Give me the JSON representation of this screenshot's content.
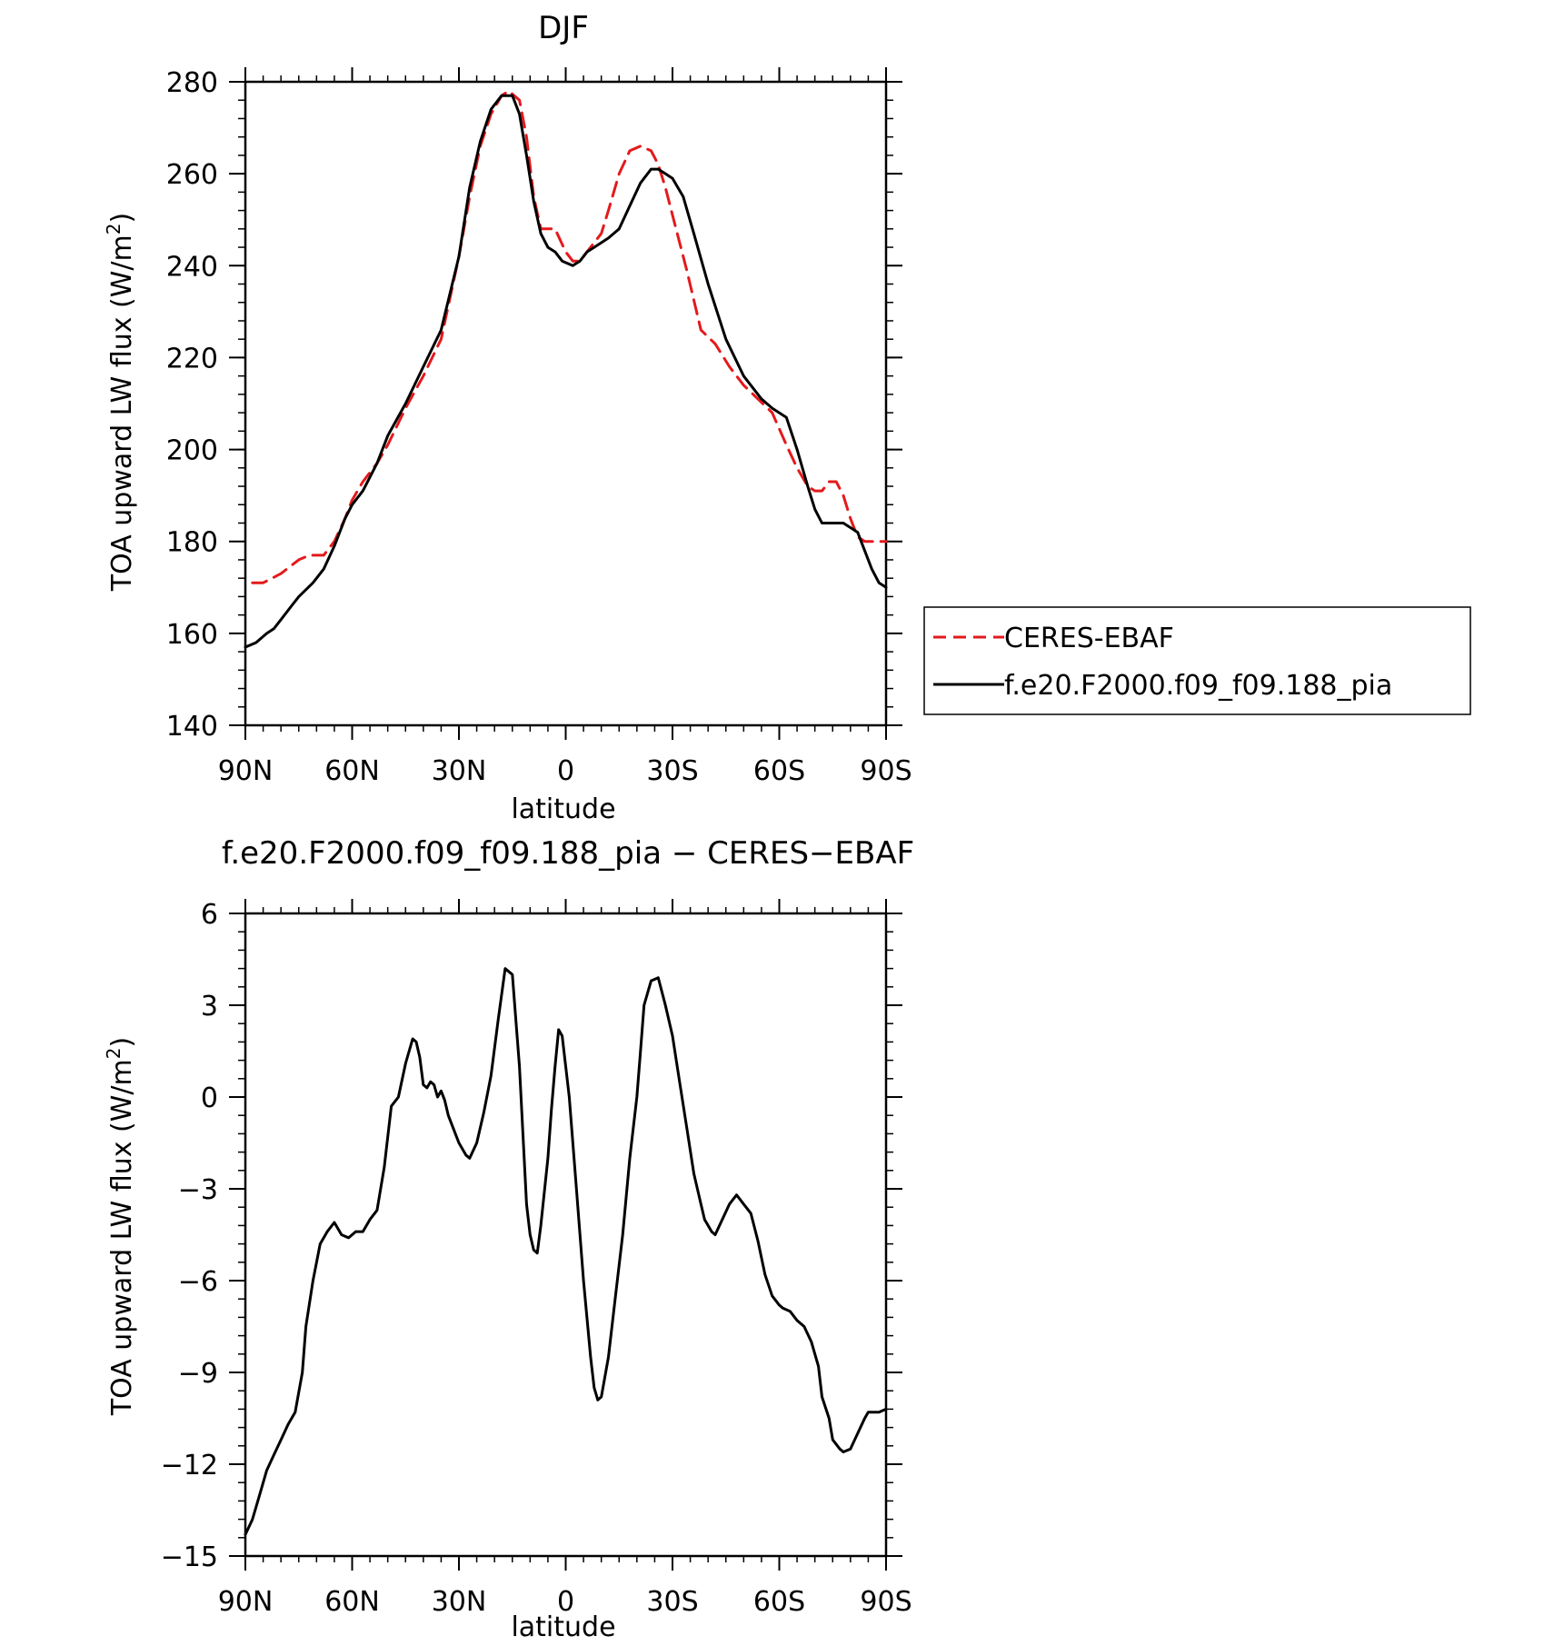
{
  "chart_data": [
    {
      "type": "line",
      "title": "DJF",
      "xlabel": "latitude",
      "ylabel": "TOA upward LW flux (W/m²)",
      "ylabel_parts": {
        "main": "TOA upward LW flux (W/m",
        "sup": "2",
        "end": ")"
      },
      "x_ticks": [
        90,
        60,
        30,
        0,
        -30,
        -60,
        -90
      ],
      "x_tick_labels": [
        "90N",
        "60N",
        "30N",
        "0",
        "30S",
        "60S",
        "90S"
      ],
      "xlim": [
        90,
        -90
      ],
      "y_ticks": [
        140,
        160,
        180,
        200,
        220,
        240,
        260,
        280
      ],
      "y_tick_labels": [
        "140",
        "160",
        "180",
        "200",
        "220",
        "240",
        "260",
        "280"
      ],
      "ylim": [
        140,
        280
      ],
      "legend_position": "right",
      "series": [
        {
          "name": "CERES-EBAF",
          "color": "#e31a1c",
          "dash": "dashed",
          "x": [
            88,
            85,
            80,
            75,
            72,
            68,
            65,
            62,
            60,
            57,
            53,
            50,
            45,
            40,
            35,
            30,
            27,
            24,
            21,
            18,
            16,
            13,
            11,
            9,
            7,
            5,
            3,
            0,
            -2,
            -4,
            -6,
            -8,
            -10,
            -12,
            -15,
            -18,
            -21,
            -24,
            -26,
            -28,
            -31,
            -34,
            -38,
            -42,
            -46,
            -50,
            -54,
            -58,
            -62,
            -65,
            -68,
            -70,
            -72,
            -74,
            -76,
            -78,
            -80,
            -82,
            -84,
            -86,
            -88,
            -90
          ],
          "y": [
            171,
            171,
            173,
            176,
            177,
            177,
            180,
            185,
            189,
            193,
            197,
            201,
            209,
            216,
            224,
            242,
            255,
            266,
            273,
            277,
            278,
            276,
            268,
            255,
            248,
            248,
            248,
            243,
            241,
            241,
            243,
            245,
            247,
            252,
            260,
            265,
            266,
            265,
            262,
            257,
            248,
            239,
            226,
            223,
            218,
            214,
            211,
            208,
            201,
            196,
            192,
            191,
            191,
            193,
            193,
            190,
            185,
            181,
            180,
            180,
            180,
            180
          ]
        },
        {
          "name": "f.e20.F2000.f09_f09.188_pia",
          "color": "#000000",
          "dash": "solid",
          "x": [
            90,
            87,
            84,
            82,
            80,
            77,
            75,
            71,
            68,
            65,
            62,
            60,
            57,
            53,
            50,
            45,
            40,
            35,
            30,
            27,
            24,
            21,
            18,
            15,
            13,
            11,
            9,
            7,
            5,
            3,
            1,
            -2,
            -4,
            -6,
            -8,
            -10,
            -12,
            -15,
            -18,
            -21,
            -24,
            -26,
            -28,
            -30,
            -33,
            -36,
            -40,
            -45,
            -50,
            -55,
            -58,
            -62,
            -65,
            -68,
            -70,
            -72,
            -75,
            -78,
            -80,
            -82,
            -84,
            -86,
            -88,
            -90
          ],
          "y": [
            157,
            158,
            160,
            161,
            163,
            166,
            168,
            171,
            174,
            179,
            185,
            188,
            191,
            197,
            203,
            210,
            218,
            226,
            242,
            257,
            267,
            274,
            277,
            277,
            273,
            264,
            254,
            247,
            244,
            243,
            241,
            240,
            241,
            243,
            244,
            245,
            246,
            248,
            253,
            258,
            261,
            261,
            260,
            259,
            255,
            247,
            236,
            224,
            216,
            211,
            209,
            207,
            200,
            192,
            187,
            184,
            184,
            184,
            183,
            182,
            178,
            174,
            171,
            170
          ]
        }
      ]
    },
    {
      "type": "line",
      "title": "f.e20.F2000.f09_f09.188_pia − CERES−EBAF",
      "xlabel": "latitude",
      "ylabel": "TOA upward LW flux (W/m²)",
      "ylabel_parts": {
        "main": "TOA upward LW flux (W/m",
        "sup": "2",
        "end": ")"
      },
      "x_ticks": [
        90,
        60,
        30,
        0,
        -30,
        -60,
        -90
      ],
      "x_tick_labels": [
        "90N",
        "60N",
        "30N",
        "0",
        "30S",
        "60S",
        "90S"
      ],
      "xlim": [
        90,
        -90
      ],
      "y_ticks": [
        -15,
        -12,
        -9,
        -6,
        -3,
        0,
        3,
        6
      ],
      "y_tick_labels": [
        "−15",
        "−12",
        "−9",
        "−6",
        "−3",
        "0",
        "3",
        "6"
      ],
      "ylim": [
        -15,
        6
      ],
      "series": [
        {
          "color": "#000000",
          "dash": "solid",
          "x": [
            90,
            88,
            86,
            84,
            82,
            80,
            78,
            76,
            74,
            73,
            71,
            69,
            67,
            65,
            63,
            61,
            59,
            57,
            55,
            53,
            51,
            49,
            47,
            45,
            43,
            42,
            41,
            40,
            39,
            38,
            37,
            36,
            35,
            34,
            33,
            32,
            31,
            30,
            29,
            28,
            27,
            25,
            23,
            21,
            19,
            17,
            15,
            13,
            11,
            10,
            9,
            8,
            7,
            6,
            5,
            4,
            3,
            2,
            1,
            0,
            -1,
            -3,
            -5,
            -7,
            -8,
            -9,
            -10,
            -12,
            -14,
            -16,
            -18,
            -20,
            -21,
            -22,
            -24,
            -26,
            -28,
            -30,
            -32,
            -34,
            -36,
            -38,
            -39,
            -40,
            -41,
            -42,
            -44,
            -46,
            -48,
            -50,
            -52,
            -54,
            -56,
            -58,
            -60,
            -61,
            -63,
            -65,
            -67,
            -69,
            -71,
            -72,
            -74,
            -75,
            -77,
            -78,
            -80,
            -82,
            -84,
            -85,
            -86,
            -88,
            -90
          ],
          "y": [
            -14.3,
            -13.8,
            -13.0,
            -12.2,
            -11.7,
            -11.2,
            -10.7,
            -10.3,
            -9.0,
            -7.5,
            -6.0,
            -4.8,
            -4.4,
            -4.1,
            -4.5,
            -4.6,
            -4.4,
            -4.4,
            -4.0,
            -3.7,
            -2.3,
            -0.3,
            0.0,
            1.1,
            1.9,
            1.8,
            1.3,
            0.4,
            0.3,
            0.5,
            0.4,
            0.0,
            0.2,
            -0.1,
            -0.6,
            -0.9,
            -1.2,
            -1.5,
            -1.7,
            -1.9,
            -2.0,
            -1.5,
            -0.5,
            0.7,
            2.5,
            4.2,
            4.0,
            1.0,
            -3.5,
            -4.5,
            -5.0,
            -5.1,
            -4.2,
            -3.1,
            -2.0,
            -0.4,
            1.0,
            2.2,
            2.0,
            1.0,
            0.0,
            -3.0,
            -6.0,
            -8.5,
            -9.5,
            -9.9,
            -9.8,
            -8.5,
            -6.5,
            -4.5,
            -2.0,
            0.0,
            1.5,
            3.0,
            3.8,
            3.9,
            3.0,
            2.0,
            0.5,
            -1.0,
            -2.5,
            -3.5,
            -4.0,
            -4.2,
            -4.4,
            -4.5,
            -4.0,
            -3.5,
            -3.2,
            -3.5,
            -3.8,
            -4.7,
            -5.8,
            -6.5,
            -6.8,
            -6.9,
            -7.0,
            -7.3,
            -7.5,
            -8.0,
            -8.8,
            -9.8,
            -10.5,
            -11.2,
            -11.5,
            -11.6,
            -11.5,
            -11.0,
            -10.5,
            -10.3,
            -10.3,
            -10.3,
            -10.2
          ]
        }
      ]
    }
  ]
}
